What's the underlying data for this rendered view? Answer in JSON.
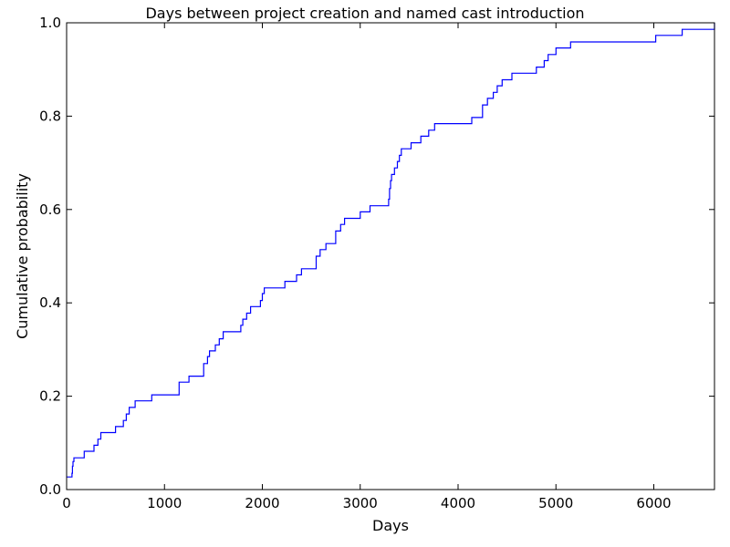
{
  "chart_data": {
    "type": "line",
    "step": true,
    "title": "Days between project creation and named cast introduction",
    "xlabel": "Days",
    "ylabel": "Cumulative probability",
    "xlim": [
      0,
      6620
    ],
    "ylim": [
      0.0,
      1.0
    ],
    "xticks": [
      0,
      1000,
      2000,
      3000,
      4000,
      5000,
      6000
    ],
    "xtick_labels": [
      "0",
      "1000",
      "2000",
      "3000",
      "4000",
      "5000",
      "6000"
    ],
    "yticks": [
      0.0,
      0.2,
      0.4,
      0.6,
      0.8,
      1.0
    ],
    "ytick_labels": [
      "0.0",
      "0.2",
      "0.4",
      "0.6",
      "0.8",
      "1.0"
    ],
    "grid": false,
    "line_color": "#0000ff",
    "series": [
      {
        "x": [
          0,
          55,
          60,
          65,
          75,
          180,
          280,
          320,
          350,
          500,
          580,
          610,
          640,
          700,
          800,
          870,
          1150,
          1250,
          1400,
          1440,
          1460,
          1520,
          1560,
          1600,
          1620,
          1650,
          1780,
          1800,
          1840,
          1880,
          1900,
          1980,
          2000,
          2020,
          2230,
          2350,
          2400,
          2550,
          2590,
          2650,
          2750,
          2790,
          2800,
          2820,
          2840,
          3000,
          3100,
          3290,
          3300,
          3310,
          3320,
          3350,
          3380,
          3400,
          3420,
          3440,
          3520,
          3620,
          3700,
          3760,
          4140,
          4250,
          4300,
          4360,
          4400,
          4450,
          4550,
          4600,
          4800,
          4880,
          4920,
          4950,
          5000,
          5080,
          5150,
          5200,
          6020,
          6290,
          6620
        ],
        "y": [
          0.027,
          0.035,
          0.05,
          0.06,
          0.068,
          0.082,
          0.095,
          0.108,
          0.122,
          0.135,
          0.148,
          0.162,
          0.176,
          0.19,
          0.19,
          0.203,
          0.23,
          0.243,
          0.27,
          0.285,
          0.297,
          0.31,
          0.323,
          0.338,
          0.338,
          0.338,
          0.352,
          0.365,
          0.378,
          0.392,
          0.392,
          0.405,
          0.42,
          0.432,
          0.446,
          0.46,
          0.473,
          0.5,
          0.514,
          0.527,
          0.554,
          0.554,
          0.568,
          0.568,
          0.581,
          0.595,
          0.608,
          0.622,
          0.645,
          0.662,
          0.675,
          0.689,
          0.703,
          0.716,
          0.73,
          0.73,
          0.743,
          0.757,
          0.77,
          0.784,
          0.797,
          0.824,
          0.838,
          0.851,
          0.865,
          0.878,
          0.892,
          0.892,
          0.905,
          0.919,
          0.932,
          0.932,
          0.946,
          0.946,
          0.959,
          0.959,
          0.973,
          0.986,
          1.0
        ]
      }
    ]
  }
}
